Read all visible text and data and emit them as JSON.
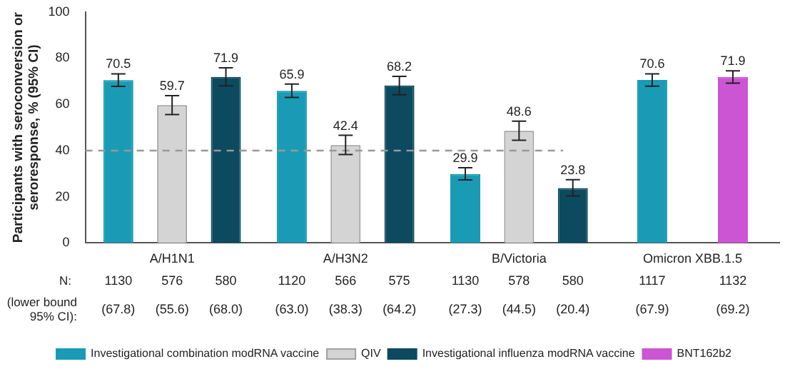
{
  "chart_data": {
    "type": "bar",
    "ylabel": "Participants with seroconversion or seroresponse, % (95% CI)",
    "categories": [
      "A/H1N1",
      "A/H3N2",
      "B/Victoria",
      "Omicron XBB.1.5"
    ],
    "series": [
      {
        "name": "Investigational combination modRNA vaccine",
        "color": "#1a9bb5",
        "values": [
          70.5,
          65.9,
          29.9,
          70.6
        ],
        "errors": [
          [
            67.8,
            73.2
          ],
          [
            63.0,
            68.8
          ],
          [
            27.3,
            32.6
          ],
          [
            67.9,
            73.2
          ]
        ]
      },
      {
        "name": "QIV",
        "color": "#d4d4d4",
        "values": [
          59.7,
          42.4,
          48.6,
          null
        ],
        "errors": [
          [
            55.6,
            63.8
          ],
          [
            38.3,
            46.6
          ],
          [
            44.5,
            52.7
          ],
          null
        ]
      },
      {
        "name": "Investigational influenza modRNA vaccine",
        "color": "#0b4a5f",
        "values": [
          71.9,
          68.2,
          23.8,
          null
        ],
        "errors": [
          [
            68.0,
            75.8
          ],
          [
            64.2,
            72.1
          ],
          [
            20.4,
            27.4
          ],
          null
        ]
      },
      {
        "name": "BNT162b2",
        "color": "#cc55d4",
        "values": [
          null,
          null,
          null,
          71.9
        ],
        "errors": [
          null,
          null,
          null,
          [
            69.2,
            74.5
          ]
        ]
      }
    ],
    "ylim": [
      0,
      100
    ],
    "yticks": [
      0,
      20,
      40,
      60,
      80,
      100
    ],
    "grid": false,
    "legend": "bottom",
    "data_labels": true,
    "ref_lines": [
      {
        "axis": "y",
        "value": 40,
        "color": "#999999",
        "line_style": "dashed"
      }
    ],
    "annotations": [
      "N:",
      "1130",
      "576",
      "580",
      "1120",
      "566",
      "575",
      "1130",
      "578",
      "580",
      "1117",
      "1132",
      "(lower bound 95% CI):",
      "(67.8)",
      "(55.6)",
      "(68.0)",
      "(63.0)",
      "(38.3)",
      "(64.2)",
      "(27.3)",
      "(44.5)",
      "(20.4)",
      "(67.9)",
      "(69.2)"
    ]
  }
}
